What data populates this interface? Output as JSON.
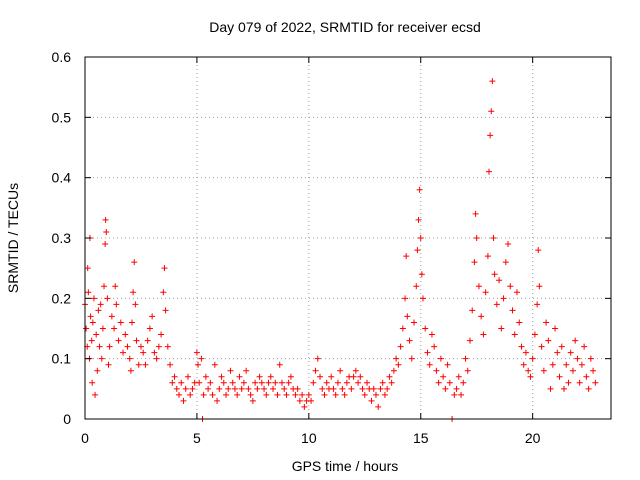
{
  "chart_data": {
    "type": "scatter",
    "title": "Day 079 of 2022, SRMTID for receiver ecsd",
    "xlabel": "GPS time / hours",
    "ylabel": "SRMTID / TECUs",
    "xlim": [
      0,
      23.5
    ],
    "ylim": [
      0,
      0.6
    ],
    "x_ticks": [
      0,
      5,
      10,
      15,
      20
    ],
    "y_ticks": [
      0,
      0.1,
      0.2,
      0.3,
      0.4,
      0.5,
      0.6
    ],
    "y_tick_labels": [
      "0",
      "0.1",
      "0.2",
      "0.3",
      "0.4",
      "0.5",
      "0.6"
    ],
    "grid": true,
    "marker": "+",
    "color": "#ff0000",
    "series": [
      {
        "name": "SRMTID",
        "points": [
          [
            0.0,
            0.19
          ],
          [
            0.05,
            0.15
          ],
          [
            0.1,
            0.12
          ],
          [
            0.12,
            0.25
          ],
          [
            0.15,
            0.21
          ],
          [
            0.2,
            0.1
          ],
          [
            0.22,
            0.3
          ],
          [
            0.25,
            0.17
          ],
          [
            0.3,
            0.13
          ],
          [
            0.32,
            0.06
          ],
          [
            0.35,
            0.16
          ],
          [
            0.4,
            0.2
          ],
          [
            0.45,
            0.04
          ],
          [
            0.5,
            0.14
          ],
          [
            0.55,
            0.08
          ],
          [
            0.6,
            0.18
          ],
          [
            0.65,
            0.12
          ],
          [
            0.7,
            0.19
          ],
          [
            0.75,
            0.1
          ],
          [
            0.8,
            0.15
          ],
          [
            0.85,
            0.22
          ],
          [
            0.9,
            0.29
          ],
          [
            0.92,
            0.33
          ],
          [
            0.95,
            0.31
          ],
          [
            1.0,
            0.2
          ],
          [
            1.05,
            0.09
          ],
          [
            1.1,
            0.12
          ],
          [
            1.2,
            0.17
          ],
          [
            1.3,
            0.15
          ],
          [
            1.35,
            0.22
          ],
          [
            1.4,
            0.19
          ],
          [
            1.5,
            0.13
          ],
          [
            1.6,
            0.16
          ],
          [
            1.7,
            0.11
          ],
          [
            1.8,
            0.14
          ],
          [
            1.9,
            0.12
          ],
          [
            2.0,
            0.1
          ],
          [
            2.05,
            0.08
          ],
          [
            2.1,
            0.16
          ],
          [
            2.15,
            0.21
          ],
          [
            2.2,
            0.26
          ],
          [
            2.25,
            0.19
          ],
          [
            2.3,
            0.13
          ],
          [
            2.4,
            0.09
          ],
          [
            2.5,
            0.12
          ],
          [
            2.6,
            0.11
          ],
          [
            2.7,
            0.09
          ],
          [
            2.8,
            0.13
          ],
          [
            2.9,
            0.15
          ],
          [
            3.0,
            0.17
          ],
          [
            3.1,
            0.11
          ],
          [
            3.2,
            0.1
          ],
          [
            3.3,
            0.12
          ],
          [
            3.4,
            0.14
          ],
          [
            3.5,
            0.21
          ],
          [
            3.55,
            0.25
          ],
          [
            3.6,
            0.18
          ],
          [
            3.7,
            0.12
          ],
          [
            3.8,
            0.09
          ],
          [
            3.9,
            0.06
          ],
          [
            4.0,
            0.07
          ],
          [
            4.1,
            0.05
          ],
          [
            4.2,
            0.04
          ],
          [
            4.3,
            0.06
          ],
          [
            4.4,
            0.03
          ],
          [
            4.5,
            0.05
          ],
          [
            4.6,
            0.07
          ],
          [
            4.7,
            0.04
          ],
          [
            4.8,
            0.05
          ],
          [
            4.9,
            0.06
          ],
          [
            5.0,
            0.11
          ],
          [
            5.05,
            0.09
          ],
          [
            5.1,
            0.06
          ],
          [
            5.2,
            0.1
          ],
          [
            5.25,
            0.0
          ],
          [
            5.3,
            0.04
          ],
          [
            5.4,
            0.07
          ],
          [
            5.5,
            0.05
          ],
          [
            5.6,
            0.06
          ],
          [
            5.7,
            0.04
          ],
          [
            5.8,
            0.09
          ],
          [
            5.9,
            0.03
          ],
          [
            6.0,
            0.05
          ],
          [
            6.1,
            0.07
          ],
          [
            6.2,
            0.06
          ],
          [
            6.3,
            0.04
          ],
          [
            6.4,
            0.05
          ],
          [
            6.5,
            0.08
          ],
          [
            6.6,
            0.06
          ],
          [
            6.7,
            0.05
          ],
          [
            6.8,
            0.04
          ],
          [
            6.9,
            0.07
          ],
          [
            7.0,
            0.05
          ],
          [
            7.1,
            0.06
          ],
          [
            7.2,
            0.08
          ],
          [
            7.3,
            0.05
          ],
          [
            7.4,
            0.04
          ],
          [
            7.5,
            0.03
          ],
          [
            7.6,
            0.06
          ],
          [
            7.7,
            0.05
          ],
          [
            7.8,
            0.07
          ],
          [
            7.9,
            0.06
          ],
          [
            8.0,
            0.05
          ],
          [
            8.1,
            0.04
          ],
          [
            8.2,
            0.06
          ],
          [
            8.3,
            0.07
          ],
          [
            8.4,
            0.05
          ],
          [
            8.5,
            0.06
          ],
          [
            8.6,
            0.04
          ],
          [
            8.7,
            0.09
          ],
          [
            8.8,
            0.06
          ],
          [
            8.9,
            0.05
          ],
          [
            9.0,
            0.04
          ],
          [
            9.1,
            0.06
          ],
          [
            9.2,
            0.07
          ],
          [
            9.3,
            0.05
          ],
          [
            9.4,
            0.04
          ],
          [
            9.5,
            0.05
          ],
          [
            9.6,
            0.03
          ],
          [
            9.7,
            0.04
          ],
          [
            9.8,
            0.02
          ],
          [
            9.9,
            0.03
          ],
          [
            10.0,
            0.04
          ],
          [
            10.1,
            0.03
          ],
          [
            10.2,
            0.06
          ],
          [
            10.3,
            0.08
          ],
          [
            10.4,
            0.1
          ],
          [
            10.5,
            0.07
          ],
          [
            10.6,
            0.05
          ],
          [
            10.7,
            0.04
          ],
          [
            10.8,
            0.06
          ],
          [
            10.9,
            0.05
          ],
          [
            11.0,
            0.07
          ],
          [
            11.1,
            0.05
          ],
          [
            11.2,
            0.04
          ],
          [
            11.3,
            0.06
          ],
          [
            11.4,
            0.08
          ],
          [
            11.5,
            0.05
          ],
          [
            11.6,
            0.04
          ],
          [
            11.7,
            0.06
          ],
          [
            11.8,
            0.07
          ],
          [
            11.9,
            0.05
          ],
          [
            12.0,
            0.07
          ],
          [
            12.1,
            0.08
          ],
          [
            12.2,
            0.06
          ],
          [
            12.3,
            0.07
          ],
          [
            12.4,
            0.05
          ],
          [
            12.5,
            0.04
          ],
          [
            12.6,
            0.06
          ],
          [
            12.7,
            0.05
          ],
          [
            12.8,
            0.03
          ],
          [
            12.9,
            0.05
          ],
          [
            13.0,
            0.04
          ],
          [
            13.1,
            0.02
          ],
          [
            13.2,
            0.05
          ],
          [
            13.3,
            0.06
          ],
          [
            13.4,
            0.04
          ],
          [
            13.5,
            0.05
          ],
          [
            13.6,
            0.07
          ],
          [
            13.7,
            0.06
          ],
          [
            13.8,
            0.08
          ],
          [
            13.9,
            0.1
          ],
          [
            14.0,
            0.09
          ],
          [
            14.1,
            0.12
          ],
          [
            14.2,
            0.15
          ],
          [
            14.3,
            0.2
          ],
          [
            14.35,
            0.27
          ],
          [
            14.4,
            0.17
          ],
          [
            14.5,
            0.13
          ],
          [
            14.6,
            0.1
          ],
          [
            14.7,
            0.16
          ],
          [
            14.8,
            0.22
          ],
          [
            14.85,
            0.28
          ],
          [
            14.9,
            0.33
          ],
          [
            14.95,
            0.38
          ],
          [
            15.0,
            0.3
          ],
          [
            15.05,
            0.24
          ],
          [
            15.1,
            0.2
          ],
          [
            15.2,
            0.15
          ],
          [
            15.3,
            0.11
          ],
          [
            15.4,
            0.09
          ],
          [
            15.5,
            0.14
          ],
          [
            15.6,
            0.12
          ],
          [
            15.7,
            0.08
          ],
          [
            15.8,
            0.06
          ],
          [
            15.9,
            0.1
          ],
          [
            16.0,
            0.07
          ],
          [
            16.1,
            0.05
          ],
          [
            16.2,
            0.09
          ],
          [
            16.3,
            0.06
          ],
          [
            16.4,
            0.0
          ],
          [
            16.5,
            0.04
          ],
          [
            16.6,
            0.05
          ],
          [
            16.7,
            0.07
          ],
          [
            16.8,
            0.04
          ],
          [
            16.9,
            0.06
          ],
          [
            17.0,
            0.1
          ],
          [
            17.1,
            0.08
          ],
          [
            17.2,
            0.13
          ],
          [
            17.3,
            0.18
          ],
          [
            17.4,
            0.26
          ],
          [
            17.45,
            0.34
          ],
          [
            17.5,
            0.3
          ],
          [
            17.6,
            0.22
          ],
          [
            17.7,
            0.17
          ],
          [
            17.8,
            0.14
          ],
          [
            17.9,
            0.21
          ],
          [
            18.0,
            0.27
          ],
          [
            18.05,
            0.41
          ],
          [
            18.1,
            0.47
          ],
          [
            18.15,
            0.51
          ],
          [
            18.2,
            0.56
          ],
          [
            18.25,
            0.3
          ],
          [
            18.3,
            0.24
          ],
          [
            18.4,
            0.19
          ],
          [
            18.5,
            0.23
          ],
          [
            18.6,
            0.15
          ],
          [
            18.7,
            0.2
          ],
          [
            18.8,
            0.26
          ],
          [
            18.9,
            0.29
          ],
          [
            19.0,
            0.22
          ],
          [
            19.1,
            0.18
          ],
          [
            19.2,
            0.14
          ],
          [
            19.3,
            0.21
          ],
          [
            19.4,
            0.16
          ],
          [
            19.5,
            0.12
          ],
          [
            19.6,
            0.09
          ],
          [
            19.7,
            0.11
          ],
          [
            19.8,
            0.08
          ],
          [
            19.9,
            0.07
          ],
          [
            20.0,
            0.1
          ],
          [
            20.1,
            0.14
          ],
          [
            20.2,
            0.19
          ],
          [
            20.25,
            0.28
          ],
          [
            20.3,
            0.22
          ],
          [
            20.4,
            0.12
          ],
          [
            20.5,
            0.08
          ],
          [
            20.6,
            0.16
          ],
          [
            20.7,
            0.13
          ],
          [
            20.8,
            0.05
          ],
          [
            20.9,
            0.09
          ],
          [
            21.0,
            0.15
          ],
          [
            21.1,
            0.11
          ],
          [
            21.2,
            0.07
          ],
          [
            21.3,
            0.12
          ],
          [
            21.4,
            0.05
          ],
          [
            21.5,
            0.09
          ],
          [
            21.6,
            0.06
          ],
          [
            21.7,
            0.11
          ],
          [
            21.8,
            0.08
          ],
          [
            21.9,
            0.13
          ],
          [
            22.0,
            0.1
          ],
          [
            22.1,
            0.06
          ],
          [
            22.2,
            0.09
          ],
          [
            22.3,
            0.12
          ],
          [
            22.4,
            0.07
          ],
          [
            22.5,
            0.05
          ],
          [
            22.6,
            0.1
          ],
          [
            22.7,
            0.08
          ],
          [
            22.8,
            0.06
          ]
        ]
      }
    ]
  }
}
